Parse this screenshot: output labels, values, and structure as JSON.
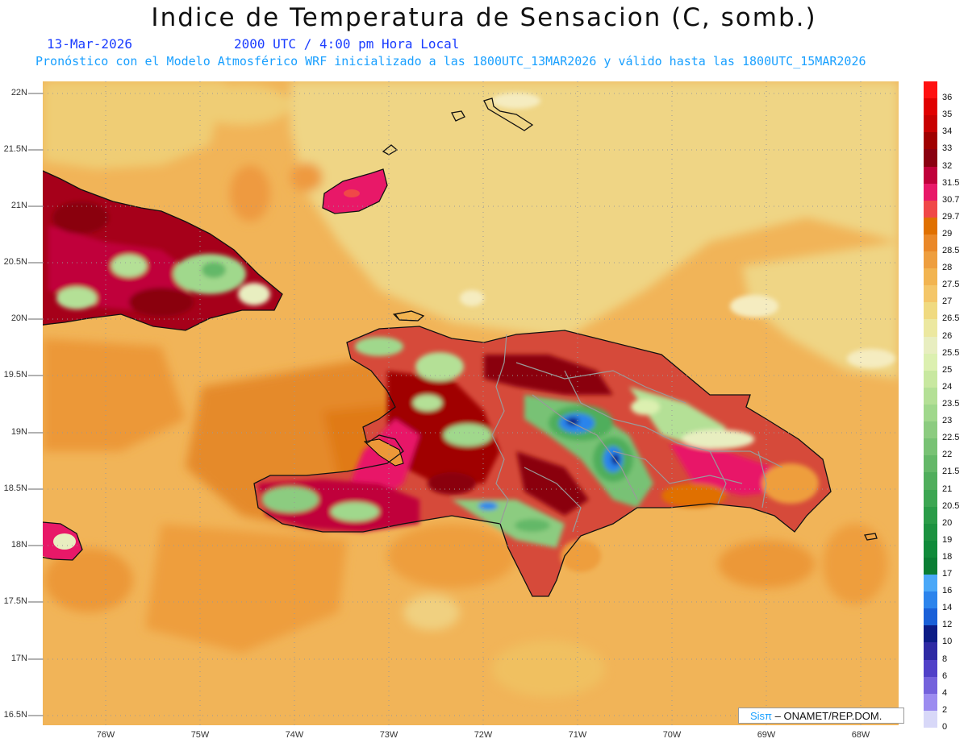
{
  "title": "Indice de Temperatura de Sensacion (C, somb.)",
  "date": "13-Mar-2026",
  "time": "2000 UTC / 4:00 pm Hora Local",
  "subtitle": "Pronóstico con el Modelo Atmosférico WRF inicializado a las 1800UTC_13MAR2026 y válido hasta las  1800UTC_15MAR2026",
  "lat_labels": [
    "22N",
    "21.5N",
    "21N",
    "20.5N",
    "20N",
    "19.5N",
    "19N",
    "18.5N",
    "18N",
    "17.5N",
    "17N",
    "16.5N"
  ],
  "lon_labels": [
    "76W",
    "75W",
    "74W",
    "73W",
    "72W",
    "71W",
    "70W",
    "69W",
    "68W"
  ],
  "credit": {
    "brand": "Sisπ",
    "text": " – ONAMET/REP.DOM."
  },
  "legend": [
    {
      "label": "36",
      "color": "#ff1010"
    },
    {
      "label": "35",
      "color": "#e00000"
    },
    {
      "label": "34",
      "color": "#c80000"
    },
    {
      "label": "33",
      "color": "#a00000"
    },
    {
      "label": "32",
      "color": "#8a0010"
    },
    {
      "label": "31.5",
      "color": "#c0003a"
    },
    {
      "label": "30.7",
      "color": "#e81868"
    },
    {
      "label": "29.7",
      "color": "#f04848"
    },
    {
      "label": "29",
      "color": "#e07000"
    },
    {
      "label": "28.5",
      "color": "#ea8828"
    },
    {
      "label": "28",
      "color": "#ee9e3e"
    },
    {
      "label": "27.5",
      "color": "#f2b450"
    },
    {
      "label": "27",
      "color": "#f4c668"
    },
    {
      "label": "26.5",
      "color": "#f0da80"
    },
    {
      "label": "26",
      "color": "#ece8a0"
    },
    {
      "label": "25.5",
      "color": "#e8eec0"
    },
    {
      "label": "25",
      "color": "#dcf0b0"
    },
    {
      "label": "24",
      "color": "#c8e8a0"
    },
    {
      "label": "23.5",
      "color": "#b4e096"
    },
    {
      "label": "23",
      "color": "#a0d88c"
    },
    {
      "label": "22.5",
      "color": "#8ccc80"
    },
    {
      "label": "22",
      "color": "#78c274"
    },
    {
      "label": "21.5",
      "color": "#64b868"
    },
    {
      "label": "21",
      "color": "#50ae5c"
    },
    {
      "label": "20.5",
      "color": "#3ca652"
    },
    {
      "label": "20",
      "color": "#2a9c48"
    },
    {
      "label": "19",
      "color": "#1c9240"
    },
    {
      "label": "18",
      "color": "#108a3a"
    },
    {
      "label": "17",
      "color": "#0a7e34"
    },
    {
      "label": "16",
      "color": "#4aa8f8"
    },
    {
      "label": "14",
      "color": "#2c84ec"
    },
    {
      "label": "12",
      "color": "#1a60d8"
    },
    {
      "label": "10",
      "color": "#0c1c86"
    },
    {
      "label": "8",
      "color": "#2e2aa4"
    },
    {
      "label": "6",
      "color": "#5040c8"
    },
    {
      "label": "4",
      "color": "#7462dc"
    },
    {
      "label": "2",
      "color": "#9c8cf0"
    },
    {
      "label": "0",
      "color": "#d8d8f8"
    }
  ]
}
